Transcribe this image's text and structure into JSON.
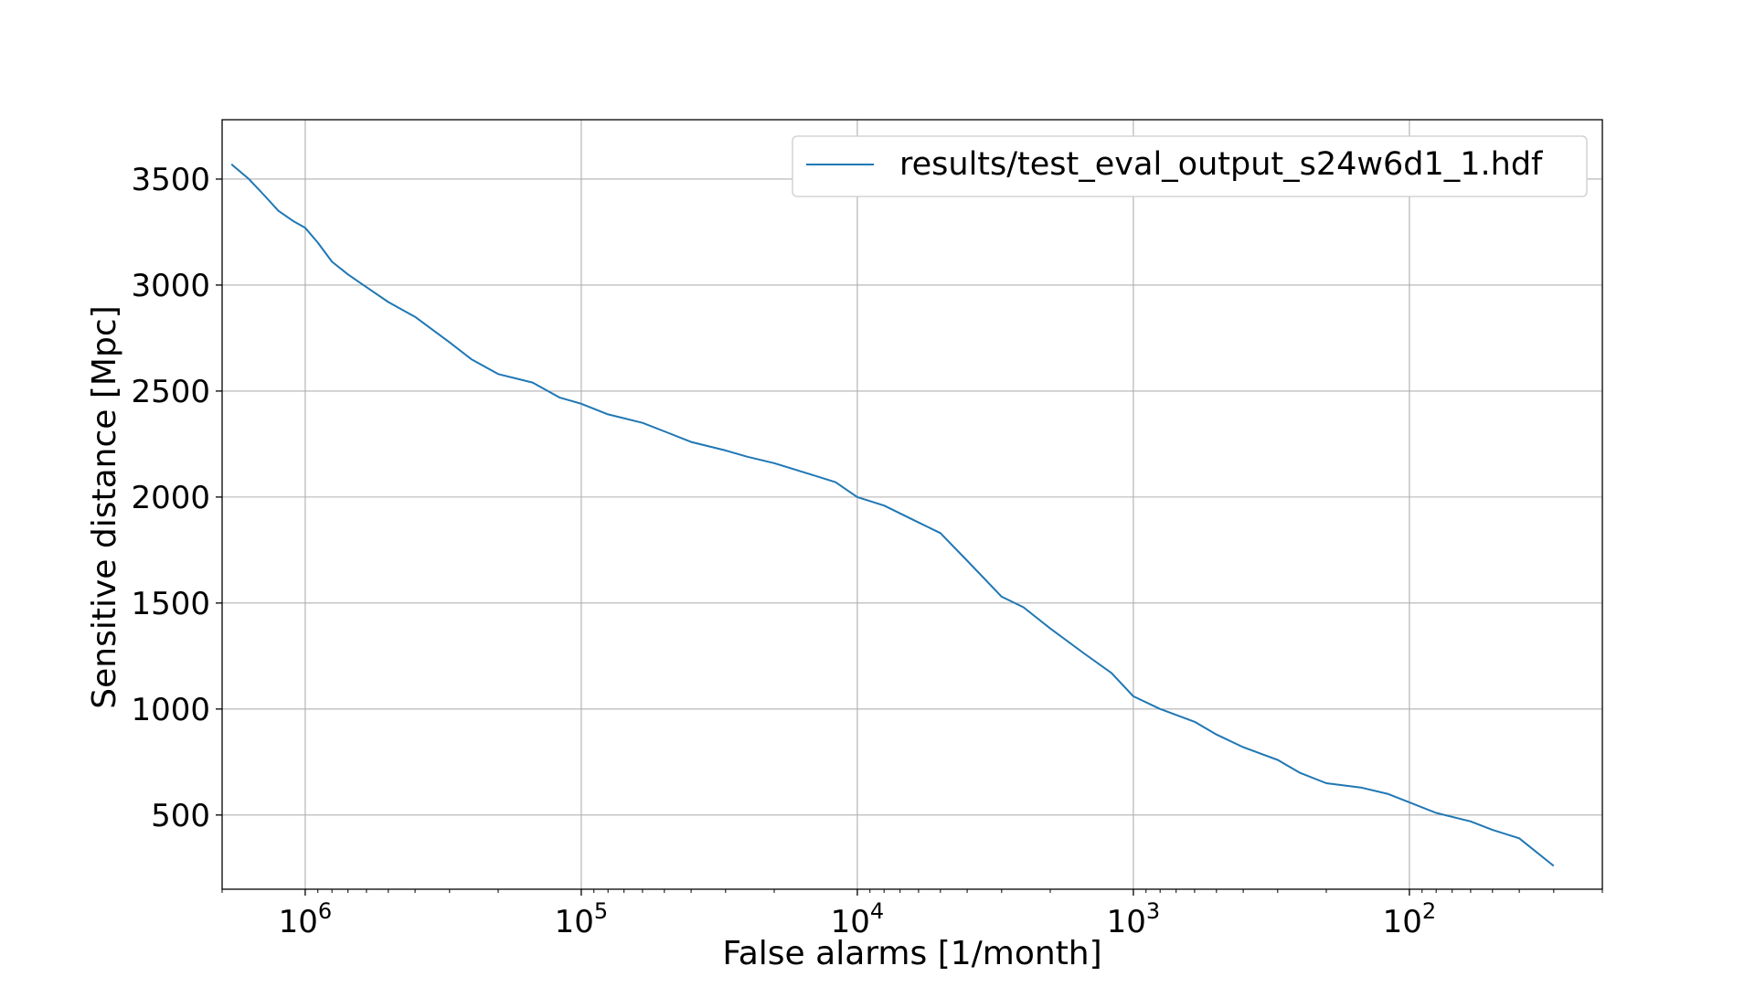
{
  "chart_data": {
    "type": "line",
    "title": "",
    "xlabel": "False alarms [1/month]",
    "ylabel": "Sensitive distance [Mpc]",
    "x_scale": "log",
    "x_inverted": true,
    "xlim": [
      2000000,
      20
    ],
    "ylim": [
      150,
      3780
    ],
    "x_ticks": [
      {
        "value": 1000000,
        "base": "10",
        "exp": "6"
      },
      {
        "value": 100000,
        "base": "10",
        "exp": "5"
      },
      {
        "value": 10000,
        "base": "10",
        "exp": "4"
      },
      {
        "value": 1000,
        "base": "10",
        "exp": "3"
      },
      {
        "value": 100,
        "base": "10",
        "exp": "2"
      }
    ],
    "y_ticks": [
      {
        "value": 500,
        "label": "500"
      },
      {
        "value": 1000,
        "label": "1000"
      },
      {
        "value": 1500,
        "label": "1500"
      },
      {
        "value": 2000,
        "label": "2000"
      },
      {
        "value": 2500,
        "label": "2500"
      },
      {
        "value": 3000,
        "label": "3000"
      },
      {
        "value": 3500,
        "label": "3500"
      }
    ],
    "grid": true,
    "legend_position": "upper right",
    "series": [
      {
        "name": "results/test_eval_output_s24w6d1_1.hdf",
        "color": "#1f77b4",
        "x": [
          1850000,
          1600000,
          1400000,
          1250000,
          1100000,
          1000000,
          900000,
          800000,
          700000,
          600000,
          500000,
          400000,
          300000,
          250000,
          200000,
          150000,
          120000,
          100000,
          80000,
          60000,
          50000,
          40000,
          30000,
          25000,
          20000,
          15000,
          12000,
          10000,
          8000,
          6000,
          5000,
          4000,
          3000,
          2500,
          2000,
          1500,
          1200,
          1000,
          800,
          600,
          500,
          400,
          300,
          250,
          200,
          150,
          120,
          100,
          80,
          60,
          50,
          40,
          30
        ],
        "y": [
          3570,
          3500,
          3420,
          3350,
          3300,
          3270,
          3200,
          3110,
          3050,
          2990,
          2920,
          2850,
          2730,
          2650,
          2580,
          2540,
          2470,
          2440,
          2390,
          2350,
          2310,
          2260,
          2220,
          2190,
          2160,
          2110,
          2070,
          2000,
          1960,
          1880,
          1830,
          1700,
          1530,
          1480,
          1380,
          1260,
          1170,
          1060,
          1000,
          940,
          880,
          820,
          760,
          700,
          650,
          630,
          600,
          560,
          510,
          470,
          430,
          390,
          260
        ]
      }
    ]
  }
}
